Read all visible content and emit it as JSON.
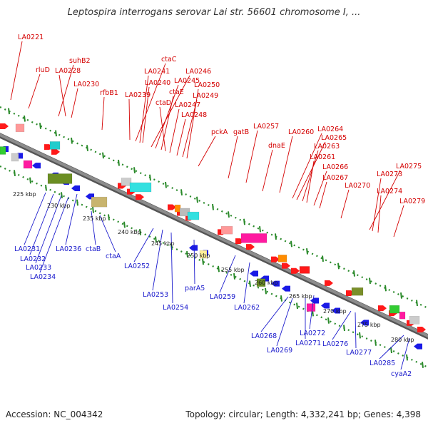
{
  "title": "Leptospira interrogans serovar Lai str. 56601 chromosome I, ...",
  "accession": "Accession: NC_004342",
  "topology": "Topology: circular; Length: 4,332,241 bp; Genes: 4,398",
  "colors": {
    "forward_label": "#d40000",
    "reverse_label": "#1a1acc",
    "backbone": "#8c8c8c",
    "tick": "#2a8a2a"
  },
  "kbp_labels": [
    "225 kbp",
    "230 kbp",
    "235 kbp",
    "240 kbp",
    "245 kbp",
    "250 kbp",
    "255 kbp",
    "260 kbp",
    "265 kbp",
    "270 kbp",
    "275 kbp",
    "280 kbp"
  ],
  "forward_labels": [
    "LA0221",
    "rluD",
    "suhB2",
    "LA0228",
    "LA0230",
    "rfbB1",
    "ctaC",
    "LA0241",
    "LA0240",
    "LA0239",
    "LA0246",
    "LA0245",
    "ctaE",
    "ctaD",
    "LA0247",
    "LA0250",
    "LA0249",
    "LA0248",
    "pckA",
    "gatB",
    "LA0257",
    "dnaE",
    "LA0260",
    "LA0264",
    "LA0265",
    "LA0263",
    "LA0261",
    "LA0266",
    "LA0267",
    "LA0270",
    "LA0275",
    "LA0273",
    "LA0274",
    "LA0279"
  ],
  "reverse_labels": [
    "LA0231",
    "LA0232",
    "LA0233",
    "LA0234",
    "LA0236",
    "ctaB",
    "ctaA",
    "LA0252",
    "LA0253",
    "LA0254",
    "parA5",
    "LA0259",
    "LA0262",
    "LA0268",
    "LA0269",
    "LA0271",
    "LA0272",
    "LA0276",
    "LA0277",
    "LA0285",
    "cyaA2"
  ]
}
